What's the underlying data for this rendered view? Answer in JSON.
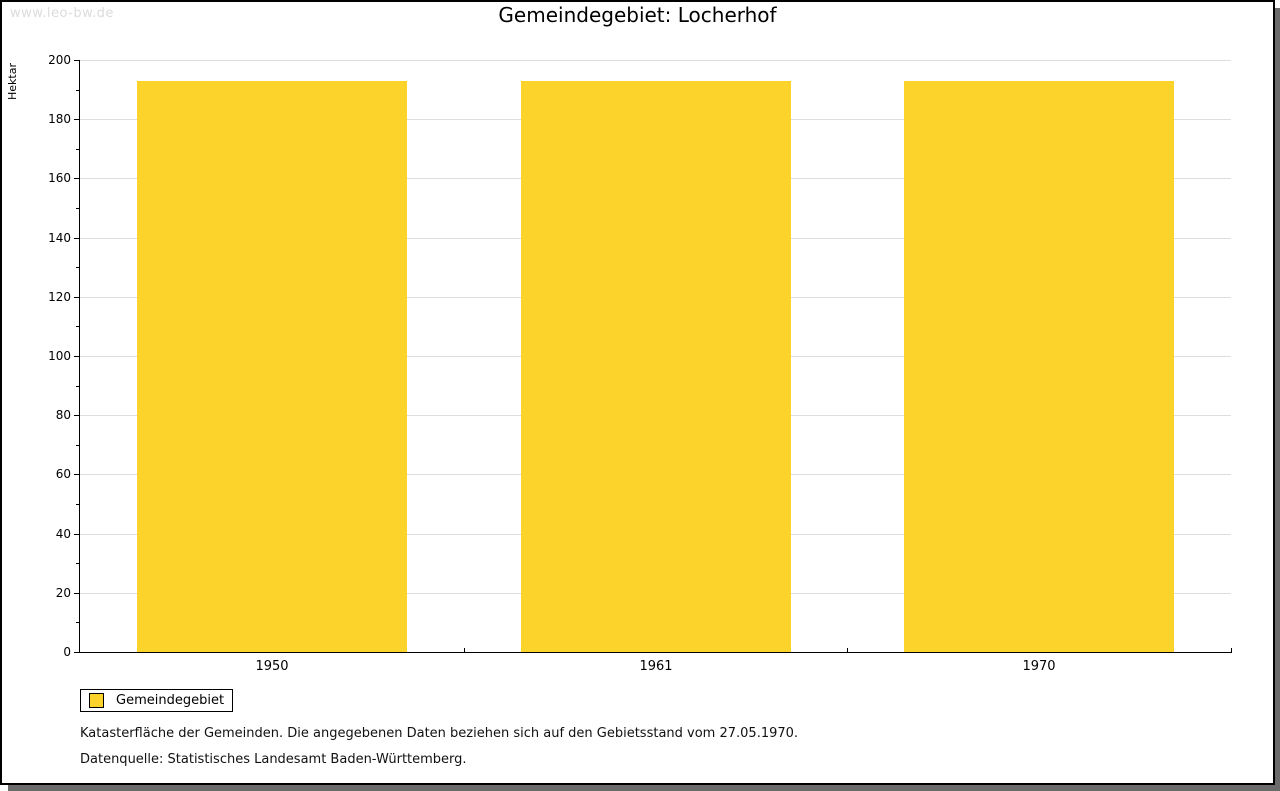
{
  "watermark": "www.leo-bw.de",
  "title": "Gemeindegebiet: Locherhof",
  "chart_data": {
    "type": "bar",
    "title": "Gemeindegebiet: Locherhof",
    "categories": [
      "1950",
      "1961",
      "1970"
    ],
    "series": [
      {
        "name": "Gemeindegebiet",
        "values": [
          193,
          193,
          193
        ]
      }
    ],
    "xlabel": "",
    "ylabel": "Hektar",
    "ylim": [
      0,
      200
    ],
    "ytick_step": 20,
    "minor_tick_step": 10,
    "grid": true,
    "legend_position": "bottom-left",
    "bar_color": "#FCD32B"
  },
  "legend": {
    "label": "Gemeindegebiet",
    "swatch_color": "#FCD32B"
  },
  "footnotes": [
    "Katasterfläche der Gemeinden. Die angegebenen Daten beziehen sich auf den Gebietsstand vom 27.05.1970.",
    "Datenquelle: Statistisches Landesamt Baden-Württemberg."
  ],
  "colors": {
    "bar": "#FCD32B",
    "gridline": "#DEDEDE",
    "axis": "#000000",
    "watermark": "#DCDCDC",
    "shadow": "#6B6B6B",
    "background": "#FFFFFF"
  }
}
